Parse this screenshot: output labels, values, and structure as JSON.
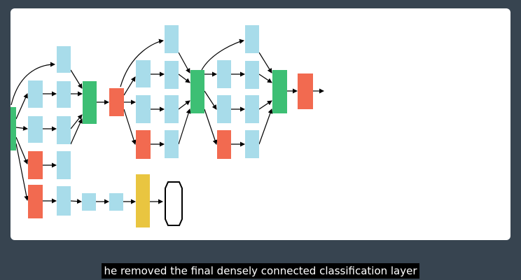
{
  "video": {
    "caption": "he removed the final densely connected classification layer"
  },
  "diagram": {
    "colors": {
      "background": "#ffffff",
      "frame": "#374450",
      "convolution": "#a8dcea",
      "concat": "#3dbf74",
      "pooling": "#f26a50",
      "fully_connected": "#e9c540",
      "output": "#ffffff",
      "arrow": "#000000"
    }
  }
}
